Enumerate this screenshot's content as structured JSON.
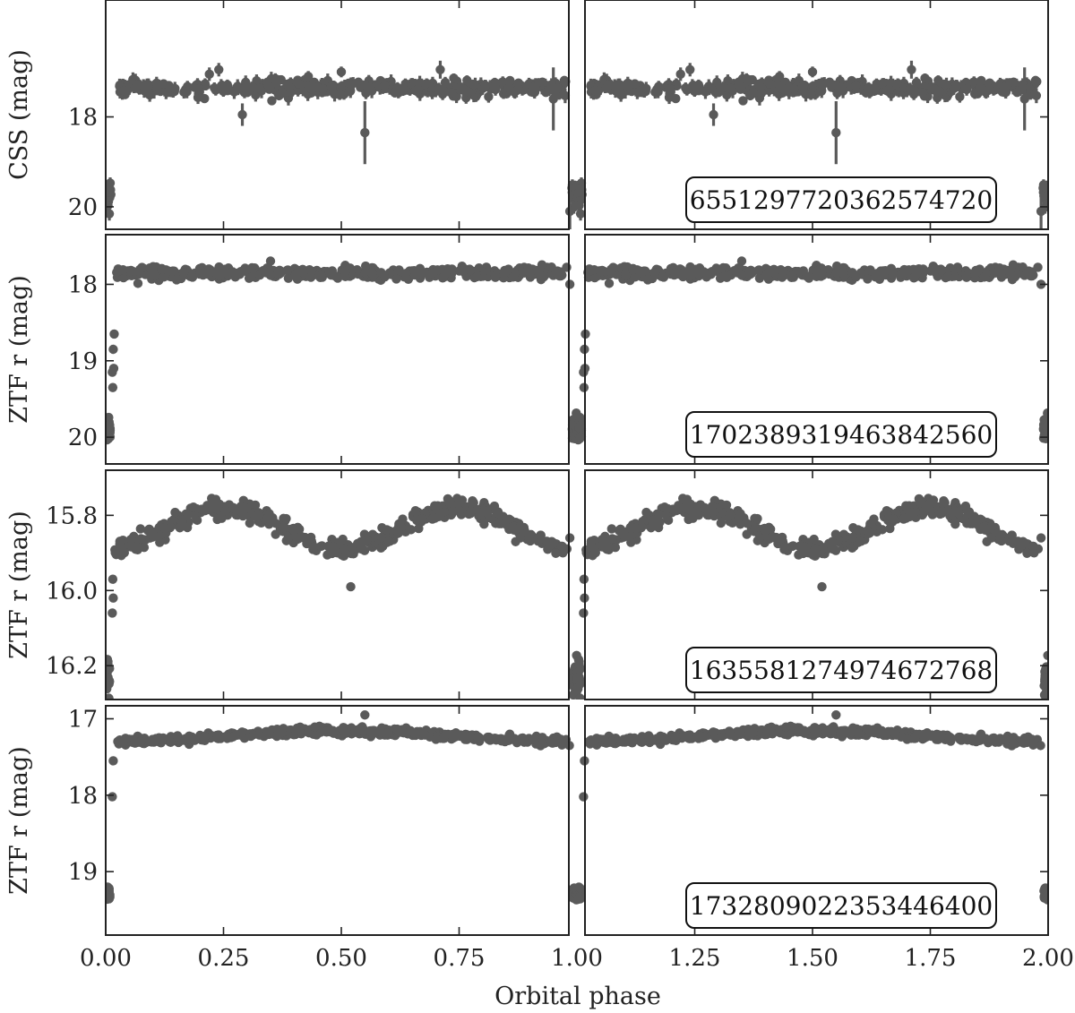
{
  "chart_data": [
    {
      "type": "scatter",
      "ylabel": "CSS (mag)",
      "id_label": "6551297720362574720",
      "y_inverted": true,
      "ylim": [
        20.5,
        15.4
      ],
      "yticks": [
        18,
        20
      ],
      "ytick_labels": [
        "18",
        "20"
      ],
      "error_bars": true,
      "color": "#5a5a5a",
      "profile": {
        "baseline_mag": 17.36,
        "eclipse_depth_mag": 2.4,
        "eclipse_halfwidth_phase": 0.02,
        "scatter_mag": 0.08,
        "error_mag": 0.12,
        "n_points": 420,
        "outliers": [
          {
            "phase": 0.55,
            "mag": 18.35,
            "err": 0.7
          },
          {
            "phase": 0.29,
            "mag": 17.95,
            "err": 0.25
          },
          {
            "phase": 0.95,
            "mag": 17.6,
            "err": 0.7
          },
          {
            "phase": 0.71,
            "mag": 16.95,
            "err": 0.2
          },
          {
            "phase": 0.5,
            "mag": 17.0,
            "err": 0.12
          },
          {
            "phase": 0.43,
            "mag": 17.1,
            "err": 0.12
          },
          {
            "phase": 0.36,
            "mag": 17.15,
            "err": 0.12
          },
          {
            "phase": 0.22,
            "mag": 17.05,
            "err": 0.15
          },
          {
            "phase": 0.24,
            "mag": 16.95,
            "err": 0.15
          },
          {
            "phase": 0.985,
            "mag": 20.1,
            "err": 0.4
          }
        ]
      }
    },
    {
      "type": "scatter",
      "ylabel": "ZTF r (mag)",
      "id_label": "1702389319463842560",
      "y_inverted": true,
      "ylim": [
        20.35,
        17.35
      ],
      "yticks": [
        18,
        19,
        20
      ],
      "ytick_labels": [
        "18",
        "19",
        "20"
      ],
      "error_bars": false,
      "color": "#5a5a5a",
      "profile": {
        "baseline_mag": 17.85,
        "eclipse_depth_mag": 2.05,
        "eclipse_halfwidth_phase": 0.018,
        "scatter_mag": 0.04,
        "n_points": 520,
        "ingress_points": [
          {
            "phase": 0.018,
            "mag": 18.65
          },
          {
            "phase": 0.016,
            "mag": 18.85
          },
          {
            "phase": 0.017,
            "mag": 19.1
          },
          {
            "phase": 0.014,
            "mag": 19.15
          },
          {
            "phase": 0.015,
            "mag": 19.35
          },
          {
            "phase": 0.985,
            "mag": 18.0
          }
        ]
      }
    },
    {
      "type": "scatter",
      "ylabel": "ZTF r (mag)",
      "id_label": "1635581274974672768",
      "y_inverted": true,
      "ylim": [
        16.29,
        15.68
      ],
      "yticks": [
        15.8,
        16.0,
        16.2
      ],
      "ytick_labels": [
        "15.8",
        "16.0",
        "16.2"
      ],
      "error_bars": false,
      "color": "#5a5a5a",
      "profile": {
        "mean_mag": 15.835,
        "ellipsoidal_amplitude_mag": 0.055,
        "maxima_phases": [
          0.25,
          0.75
        ],
        "minima_phases": [
          0.0,
          0.5
        ],
        "eclipse_depth_mag": 0.35,
        "eclipse_halfwidth_phase": 0.016,
        "scatter_mag": 0.012,
        "n_points": 560,
        "ingress_points": [
          {
            "phase": 0.015,
            "mag": 15.97
          },
          {
            "phase": 0.016,
            "mag": 16.02
          },
          {
            "phase": 0.014,
            "mag": 16.06
          },
          {
            "phase": 0.985,
            "mag": 15.86
          }
        ],
        "outliers": [
          {
            "phase": 0.52,
            "mag": 15.99
          },
          {
            "phase": 0.87,
            "mag": 15.87
          },
          {
            "phase": 0.88,
            "mag": 15.86
          }
        ]
      }
    },
    {
      "type": "scatter",
      "ylabel": "ZTF r (mag)",
      "id_label": "1732809022353446400",
      "y_inverted": true,
      "ylim": [
        19.83,
        16.83
      ],
      "yticks": [
        17,
        18,
        19
      ],
      "ytick_labels": [
        "17",
        "18",
        "19"
      ],
      "error_bars": false,
      "color": "#5a5a5a",
      "profile": {
        "baseline_mag": 17.3,
        "reflection_amplitude_mag": 0.14,
        "reflection_peak_phase": 0.5,
        "eclipse_depth_mag": 1.98,
        "eclipse_halfwidth_phase": 0.016,
        "scatter_mag": 0.025,
        "n_points": 540,
        "ingress_points": [
          {
            "phase": 0.016,
            "mag": 17.55
          },
          {
            "phase": 0.014,
            "mag": 18.02
          },
          {
            "phase": 0.984,
            "mag": 17.35
          }
        ],
        "outliers": [
          {
            "phase": 0.55,
            "mag": 16.95
          }
        ]
      }
    }
  ],
  "x_axis": {
    "label": "Orbital phase",
    "xlim": [
      0.0,
      2.0
    ],
    "xticks": [
      0.0,
      0.25,
      0.5,
      0.75,
      1.0,
      1.25,
      1.5,
      1.75,
      2.0
    ],
    "xtick_labels": [
      "0.00",
      "0.25",
      "0.50",
      "0.75",
      "1.00",
      "1.25",
      "1.50",
      "1.75",
      "2.00"
    ],
    "break_at": 1.0
  }
}
